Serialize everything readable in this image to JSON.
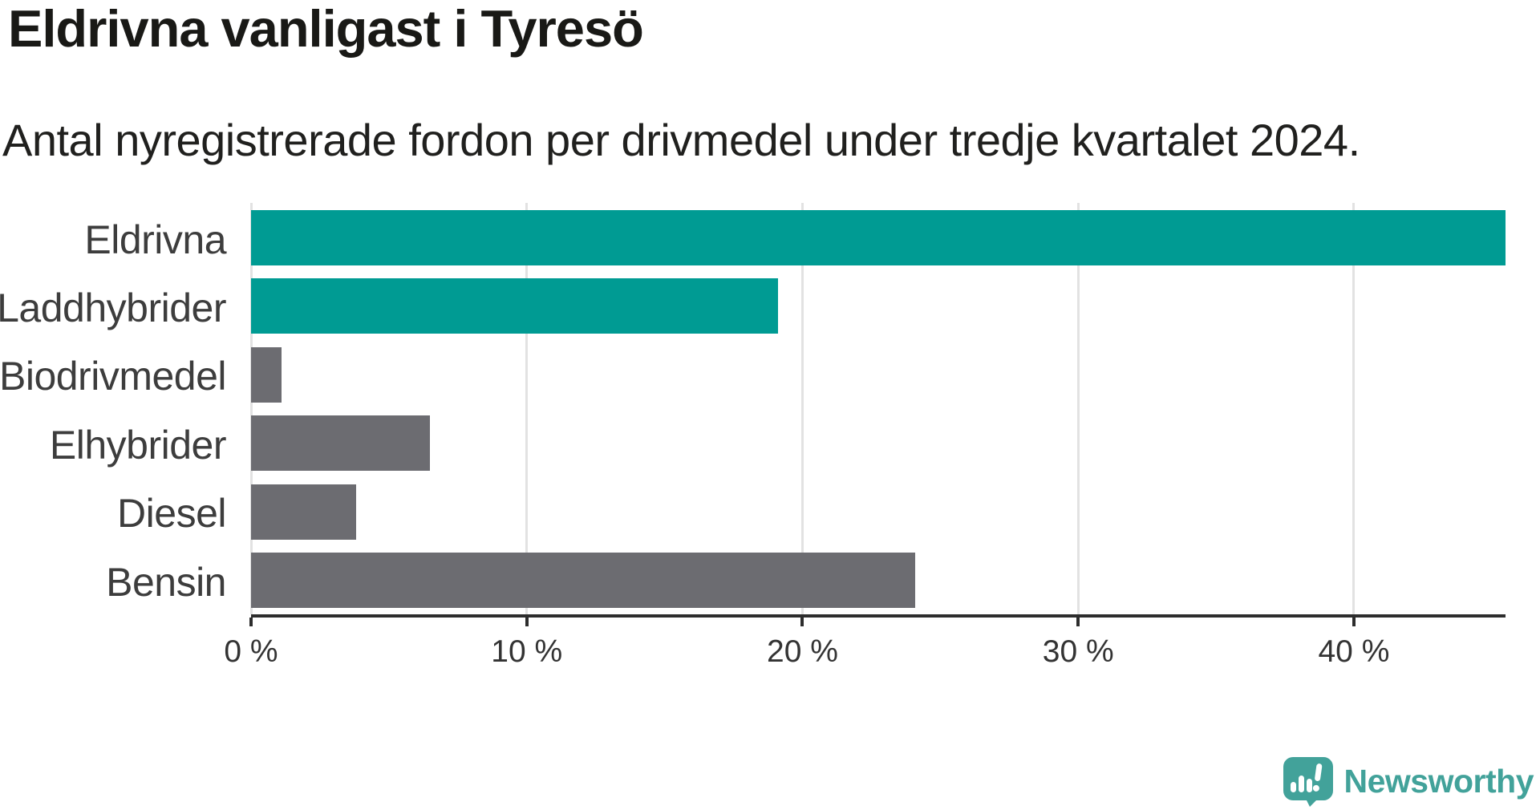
{
  "header": {
    "title": "Eldrivna vanligast i Tyresö",
    "subtitle": "Antal nyregistrerade fordon per drivmedel under tredje kvartalet 2024."
  },
  "chart_data": {
    "type": "bar",
    "orientation": "horizontal",
    "title": "Eldrivna vanligast i Tyresö",
    "subtitle": "Antal nyregistrerade fordon per drivmedel under tredje kvartalet 2024.",
    "categories": [
      "Eldrivna",
      "Laddhybrider",
      "Biodrivmedel",
      "Elhybrider",
      "Diesel",
      "Bensin"
    ],
    "values": [
      45.5,
      19.1,
      1.1,
      6.5,
      3.8,
      24.1
    ],
    "unit": "%",
    "xlim": [
      0,
      45.5
    ],
    "x_ticks": [
      0,
      10,
      20,
      30,
      40
    ],
    "x_tick_labels": [
      "0 %",
      "10 %",
      "20 %",
      "30 %",
      "40 %"
    ],
    "bar_colors": [
      "#009b93",
      "#009b93",
      "#6c6c71",
      "#6c6c71",
      "#6c6c71",
      "#6c6c71"
    ],
    "grid": "vertical-light",
    "legend": "none"
  },
  "colors": {
    "highlight": "#009b93",
    "neutral": "#6c6c71",
    "axis": "#2d2d2d",
    "grid": "#e2e2e2",
    "logo": "#42a29a"
  },
  "footer": {
    "brand": "Newsworthy"
  }
}
